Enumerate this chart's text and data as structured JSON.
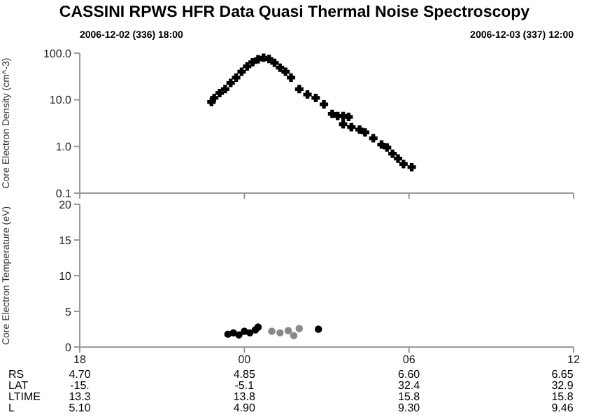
{
  "chart_data": [
    {
      "type": "scatter",
      "title": "CASSINI RPWS HFR Data Quasi Thermal Noise Spectroscopy",
      "ylabel": "Core Electron Density (cm^-3)",
      "annotations": [
        "2006-12-02 (336) 18:00",
        "2006-12-03 (337) 12:00"
      ],
      "log": "y",
      "marker": "cross",
      "tick_labels": "y",
      "xlim": [
        "2006-12-02T18:00",
        "2006-12-03T12:00"
      ],
      "xticks": [
        {
          "value": "2006-12-02T18:00",
          "label": null
        },
        {
          "value": "2006-12-03T00:00",
          "label": null
        },
        {
          "value": "2006-12-03T06:00",
          "label": null
        },
        {
          "value": "2006-12-03T12:00",
          "label": null
        }
      ],
      "ylim": [
        0.1,
        100
      ],
      "yticks": [
        {
          "value": 0.1,
          "label": "0.1"
        },
        {
          "value": 1,
          "label": "1.0"
        },
        {
          "value": 10,
          "label": "10.0"
        },
        {
          "value": 100,
          "label": "100.0"
        }
      ],
      "series": [
        {
          "color": "#000000",
          "x": [
            "2006-12-02T22:48",
            "2006-12-02T22:54",
            "2006-12-02T23:06",
            "2006-12-02T23:18",
            "2006-12-02T23:30",
            "2006-12-02T23:42",
            "2006-12-02T23:54",
            "2006-12-03T00:06",
            "2006-12-03T00:18",
            "2006-12-03T00:30",
            "2006-12-03T00:42",
            "2006-12-03T00:54",
            "2006-12-03T01:06",
            "2006-12-03T01:18",
            "2006-12-03T01:30",
            "2006-12-03T01:42",
            "2006-12-03T02:00",
            "2006-12-03T02:18",
            "2006-12-03T02:36",
            "2006-12-03T02:54",
            "2006-12-03T03:12",
            "2006-12-03T03:24",
            "2006-12-03T03:36",
            "2006-12-03T03:48",
            "2006-12-03T03:36",
            "2006-12-03T03:54",
            "2006-12-03T04:12",
            "2006-12-03T04:24",
            "2006-12-03T04:42",
            "2006-12-03T05:00",
            "2006-12-03T05:12",
            "2006-12-03T05:24",
            "2006-12-03T05:36",
            "2006-12-03T05:48",
            "2006-12-03T06:06"
          ],
          "values": [
            9,
            11,
            14,
            17,
            23,
            30,
            40,
            52,
            64,
            74,
            80,
            75,
            62,
            49,
            40,
            30,
            17,
            13,
            11,
            8,
            5,
            4.5,
            4.5,
            4.3,
            3,
            2.6,
            2.3,
            2.0,
            1.5,
            1.1,
            0.95,
            0.7,
            0.55,
            0.42,
            0.36
          ]
        }
      ]
    },
    {
      "type": "scatter",
      "ylabel": "Core Electron Temperature (eV)",
      "marker": "circle",
      "xlim": [
        "2006-12-02T18:00",
        "2006-12-03T12:00"
      ],
      "xticks": [
        {
          "value": "2006-12-02T18:00",
          "label": "18"
        },
        {
          "value": "2006-12-03T00:00",
          "label": "00"
        },
        {
          "value": "2006-12-03T06:00",
          "label": "06"
        },
        {
          "value": "2006-12-03T12:00",
          "label": "12"
        }
      ],
      "ylim": [
        0,
        20
      ],
      "yticks": [
        0,
        5,
        10,
        15,
        20
      ],
      "annotations": [
        "RS",
        "4.70",
        "4.85",
        "6.60",
        "6.65",
        "LAT",
        "-15.",
        "-5.1",
        "32.4",
        "32.9",
        "LTIME",
        "13.3",
        "13.8",
        "15.8",
        "15.8",
        "L",
        "5.10",
        "4.90",
        "9.30",
        "9.46"
      ],
      "series": [
        {
          "color": "#000000",
          "x": [
            "2006-12-02T23:24",
            "2006-12-02T23:36",
            "2006-12-02T23:48",
            "2006-12-03T00:00",
            "2006-12-03T00:12",
            "2006-12-03T00:24",
            "2006-12-03T00:30",
            "2006-12-03T02:42"
          ],
          "values": [
            1.8,
            2.0,
            1.7,
            2.2,
            2.0,
            2.4,
            2.8,
            2.5
          ]
        },
        {
          "color": "#888888",
          "x": [
            "2006-12-03T01:00",
            "2006-12-03T01:18",
            "2006-12-03T01:36",
            "2006-12-03T01:48",
            "2006-12-03T02:00"
          ],
          "values": [
            2.2,
            2.0,
            2.3,
            1.6,
            2.6
          ]
        }
      ]
    }
  ]
}
